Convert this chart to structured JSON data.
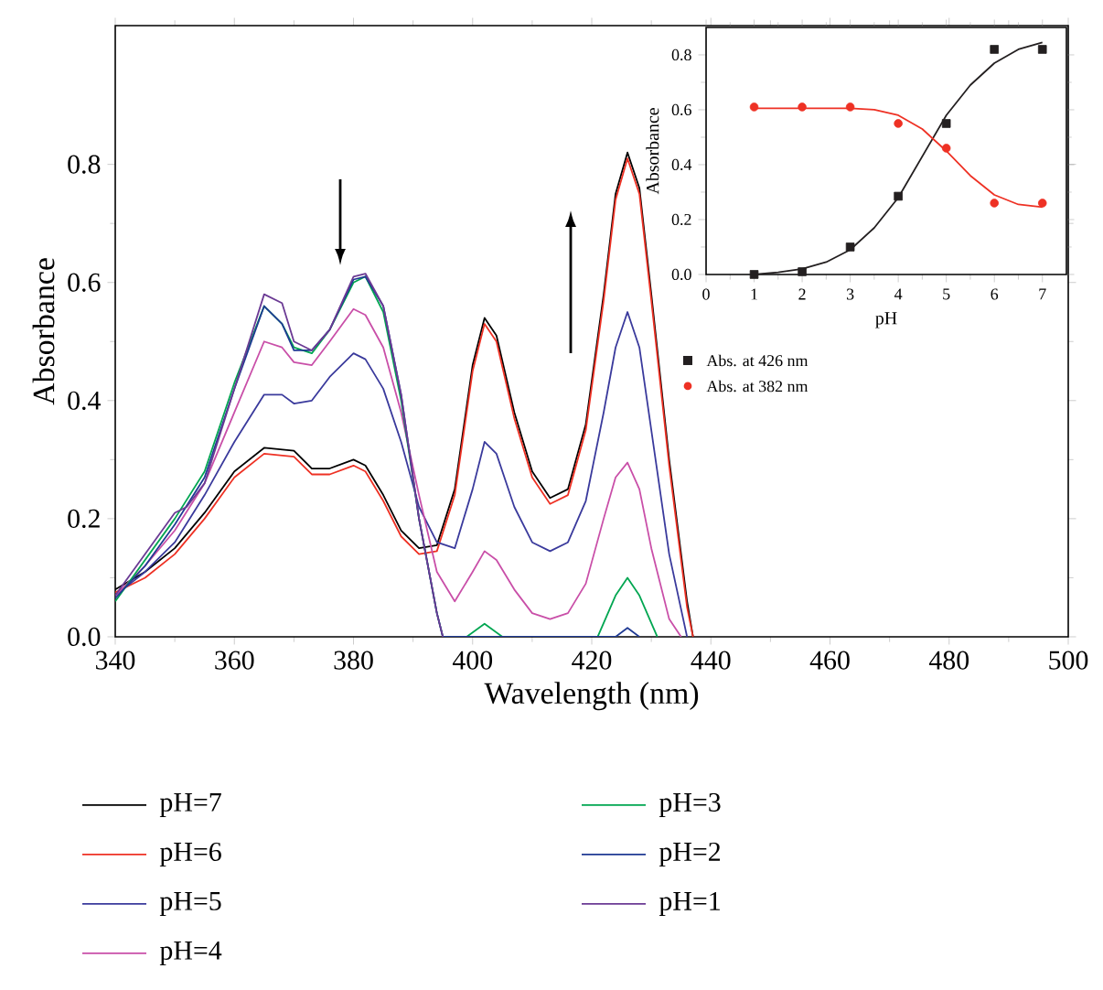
{
  "chart_data": [
    {
      "type": "line",
      "xlabel": "Wavelength (nm)",
      "ylabel": "Absorbance",
      "xlim": [
        340,
        500
      ],
      "ylim": [
        0,
        1.035
      ],
      "xticks": [
        340,
        360,
        380,
        400,
        420,
        440,
        460,
        480,
        500
      ],
      "yticks": [
        {
          "value": 0,
          "label": "0.0"
        },
        {
          "value": 0.2,
          "label": "0.2"
        },
        {
          "value": 0.4,
          "label": "0.4"
        },
        {
          "value": 0.6,
          "label": "0.6"
        },
        {
          "value": 0.8,
          "label": "0.8"
        }
      ],
      "legend": "bottom",
      "line_style": "solid",
      "series": [
        {
          "name": "pH=7",
          "color": "#000000",
          "x": [
            340,
            345,
            350,
            355,
            360,
            365,
            370,
            373,
            376,
            380,
            382,
            385,
            388,
            391,
            394,
            397,
            400,
            402,
            404,
            407,
            410,
            413,
            416,
            419,
            422,
            424,
            426,
            428,
            430,
            433,
            436,
            437
          ],
          "values": [
            0.08,
            0.11,
            0.15,
            0.21,
            0.28,
            0.32,
            0.315,
            0.285,
            0.285,
            0.3,
            0.29,
            0.24,
            0.18,
            0.15,
            0.155,
            0.25,
            0.46,
            0.54,
            0.51,
            0.38,
            0.28,
            0.235,
            0.25,
            0.36,
            0.58,
            0.75,
            0.82,
            0.76,
            0.58,
            0.3,
            0.06,
            0.0
          ]
        },
        {
          "name": "pH=6",
          "color": "#ee3124",
          "x": [
            340,
            345,
            350,
            355,
            360,
            365,
            370,
            373,
            376,
            380,
            382,
            385,
            388,
            391,
            394,
            397,
            400,
            402,
            404,
            407,
            410,
            413,
            416,
            419,
            422,
            424,
            426,
            428,
            430,
            433,
            436,
            437
          ],
          "values": [
            0.075,
            0.1,
            0.14,
            0.2,
            0.27,
            0.31,
            0.305,
            0.275,
            0.275,
            0.29,
            0.28,
            0.23,
            0.17,
            0.14,
            0.145,
            0.24,
            0.45,
            0.53,
            0.5,
            0.37,
            0.27,
            0.225,
            0.24,
            0.35,
            0.57,
            0.74,
            0.81,
            0.75,
            0.57,
            0.29,
            0.05,
            0.0
          ]
        },
        {
          "name": "pH=5",
          "color": "#3a3a9c",
          "x": [
            340,
            345,
            350,
            355,
            360,
            365,
            368,
            370,
            373,
            376,
            380,
            382,
            385,
            388,
            391,
            394,
            397,
            400,
            402,
            404,
            407,
            410,
            413,
            416,
            419,
            422,
            424,
            426,
            428,
            430,
            433,
            436
          ],
          "values": [
            0.07,
            0.11,
            0.16,
            0.24,
            0.33,
            0.41,
            0.41,
            0.395,
            0.4,
            0.44,
            0.48,
            0.47,
            0.42,
            0.33,
            0.22,
            0.16,
            0.15,
            0.25,
            0.33,
            0.31,
            0.22,
            0.16,
            0.145,
            0.16,
            0.23,
            0.38,
            0.49,
            0.55,
            0.49,
            0.35,
            0.14,
            0.0
          ]
        },
        {
          "name": "pH=4",
          "color": "#c94fa8",
          "x": [
            340,
            345,
            350,
            355,
            360,
            365,
            368,
            370,
            373,
            376,
            380,
            382,
            385,
            388,
            391,
            394,
            397,
            400,
            402,
            404,
            407,
            410,
            413,
            416,
            419,
            422,
            424,
            426,
            428,
            430,
            433,
            435
          ],
          "values": [
            0.07,
            0.12,
            0.18,
            0.26,
            0.38,
            0.5,
            0.49,
            0.465,
            0.46,
            0.5,
            0.555,
            0.545,
            0.49,
            0.38,
            0.24,
            0.11,
            0.06,
            0.11,
            0.145,
            0.13,
            0.08,
            0.04,
            0.03,
            0.04,
            0.09,
            0.2,
            0.27,
            0.295,
            0.25,
            0.15,
            0.03,
            0.0
          ]
        },
        {
          "name": "pH=3",
          "color": "#00a651",
          "x": [
            340,
            345,
            350,
            355,
            360,
            365,
            368,
            370,
            373,
            376,
            380,
            382,
            385,
            388,
            391,
            394,
            395,
            399,
            402,
            405,
            421,
            424,
            426,
            428,
            431
          ],
          "values": [
            0.06,
            0.13,
            0.2,
            0.28,
            0.43,
            0.56,
            0.53,
            0.49,
            0.48,
            0.52,
            0.6,
            0.61,
            0.55,
            0.4,
            0.2,
            0.04,
            0.0,
            0.0,
            0.022,
            0.0,
            0.0,
            0.07,
            0.1,
            0.07,
            0.0
          ]
        },
        {
          "name": "pH=2",
          "color": "#1f3a93",
          "x": [
            340,
            345,
            350,
            355,
            360,
            365,
            368,
            370,
            373,
            376,
            380,
            382,
            385,
            388,
            391,
            394,
            395,
            424,
            426,
            428
          ],
          "values": [
            0.065,
            0.12,
            0.19,
            0.27,
            0.42,
            0.56,
            0.53,
            0.485,
            0.485,
            0.52,
            0.605,
            0.61,
            0.56,
            0.41,
            0.2,
            0.04,
            0.0,
            0.0,
            0.015,
            0.0
          ]
        },
        {
          "name": "pH=1",
          "color": "#6b3a94",
          "x": [
            340,
            345,
            350,
            352,
            355,
            360,
            365,
            368,
            370,
            373,
            376,
            380,
            382,
            385,
            388,
            391,
            394,
            395
          ],
          "values": [
            0.07,
            0.14,
            0.21,
            0.22,
            0.26,
            0.42,
            0.58,
            0.565,
            0.5,
            0.485,
            0.52,
            0.61,
            0.615,
            0.56,
            0.41,
            0.2,
            0.04,
            0.0
          ]
        }
      ]
    },
    {
      "type": "scatter",
      "xlabel": "pH",
      "ylabel": "Absorbance",
      "xlim": [
        0,
        7.5
      ],
      "ylim": [
        0,
        0.9
      ],
      "xticks": [
        0,
        1,
        2,
        3,
        4,
        5,
        6,
        7
      ],
      "yticks": [
        {
          "value": 0,
          "label": "0.0"
        },
        {
          "value": 0.2,
          "label": "0.2"
        },
        {
          "value": 0.4,
          "label": "0.4"
        },
        {
          "value": 0.6,
          "label": "0.6"
        },
        {
          "value": 0.8,
          "label": "0.8"
        }
      ],
      "legend": "bottom left",
      "series": [
        {
          "name": "Abs. at 426 nm",
          "color": "#231f20",
          "marker": "square",
          "x": [
            1,
            2,
            3,
            4,
            5,
            6,
            7
          ],
          "values": [
            0.0,
            0.01,
            0.1,
            0.285,
            0.55,
            0.82,
            0.82
          ]
        },
        {
          "name": "Abs. at 382 nm",
          "color": "#ee3124",
          "marker": "circle",
          "x": [
            1,
            2,
            3,
            4,
            5,
            6,
            7
          ],
          "values": [
            0.61,
            0.61,
            0.61,
            0.55,
            0.46,
            0.26,
            0.26
          ]
        },
        {
          "type": "line",
          "color": "#231f20",
          "x": [
            1,
            1.5,
            2,
            2.5,
            3,
            3.5,
            4,
            4.5,
            5,
            5.5,
            6,
            6.5,
            7
          ],
          "values": [
            0.0,
            0.008,
            0.02,
            0.045,
            0.09,
            0.17,
            0.28,
            0.43,
            0.58,
            0.69,
            0.77,
            0.82,
            0.845
          ]
        },
        {
          "type": "line",
          "color": "#ee3124",
          "x": [
            1,
            2,
            3,
            3.5,
            4,
            4.5,
            5,
            5.5,
            6,
            6.5,
            7
          ],
          "values": [
            0.605,
            0.605,
            0.605,
            0.6,
            0.58,
            0.53,
            0.45,
            0.36,
            0.29,
            0.255,
            0.245
          ]
        }
      ]
    }
  ]
}
